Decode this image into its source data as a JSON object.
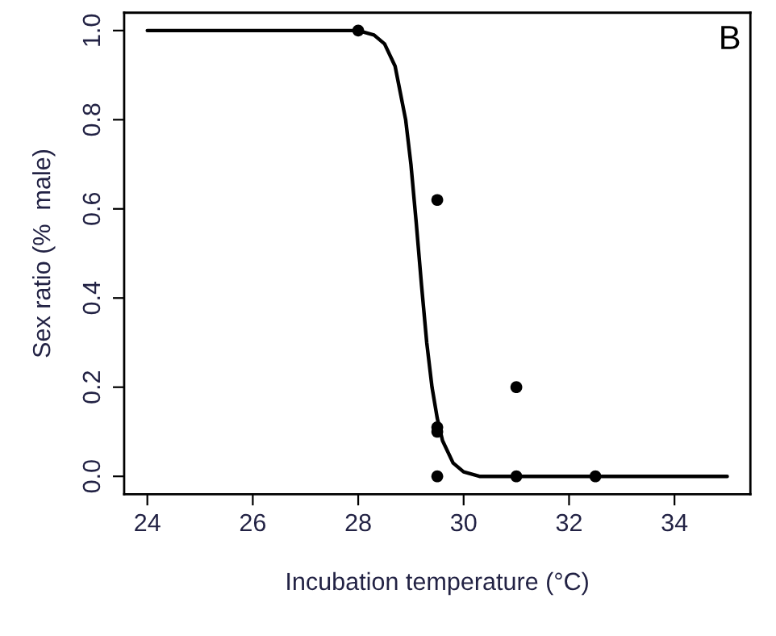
{
  "chart_data": {
    "type": "scatter",
    "xlabel": "Incubation temperature (°C)",
    "ylabel": "Sex ratio (%  male)",
    "annotations": [
      "B"
    ],
    "xlim": [
      23.56,
      35.44
    ],
    "ylim": [
      -0.04,
      1.04
    ],
    "xticks": [
      24,
      26,
      28,
      30,
      32,
      34
    ],
    "yticks": [
      {
        "value": 0,
        "label": "0.0"
      },
      {
        "value": 0.2,
        "label": "0.2"
      },
      {
        "value": 0.4,
        "label": "0.4"
      },
      {
        "value": 0.6,
        "label": "0.6"
      },
      {
        "value": 0.8,
        "label": "0.8"
      },
      {
        "value": 1,
        "label": "1.0"
      }
    ],
    "grid": false,
    "legend": false,
    "series": [
      {
        "color": "#000000",
        "marker": "circle",
        "x": [
          28,
          29.5,
          29.5,
          29.5,
          29.5,
          31,
          31,
          32.5
        ],
        "values": [
          1,
          0.62,
          0.11,
          0.1,
          0,
          0.2,
          0,
          0
        ]
      },
      {
        "type": "line",
        "color": "#000000",
        "marker": "none",
        "line_style": "solid",
        "x": [
          24,
          27,
          28,
          28.3,
          28.5,
          28.7,
          28.9,
          29.0,
          29.1,
          29.2,
          29.3,
          29.4,
          29.5,
          29.6,
          29.8,
          30.0,
          30.3,
          31,
          32,
          35
        ],
        "values": [
          1,
          1,
          1,
          0.99,
          0.97,
          0.92,
          0.8,
          0.7,
          0.57,
          0.43,
          0.3,
          0.2,
          0.13,
          0.08,
          0.03,
          0.01,
          0,
          0,
          0,
          0
        ]
      }
    ]
  }
}
